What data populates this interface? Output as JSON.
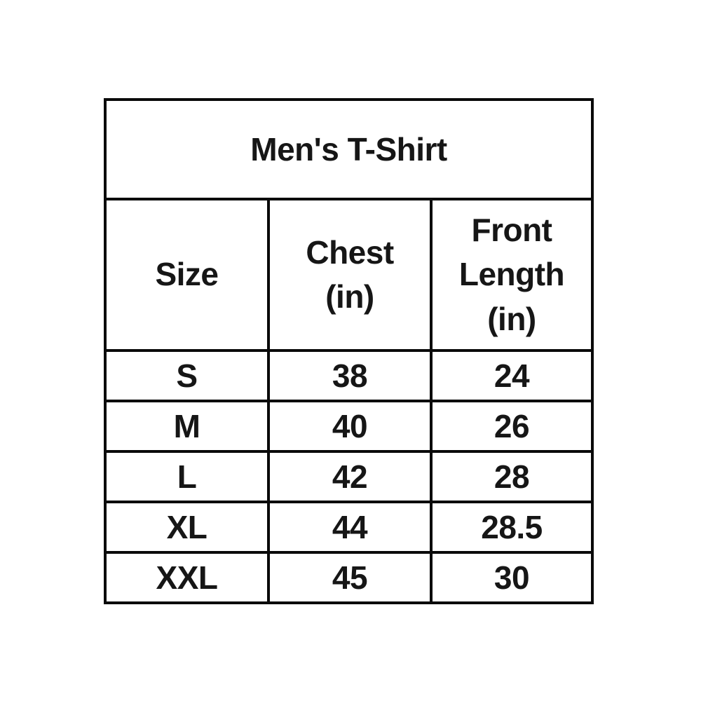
{
  "page": {
    "background": "#ffffff"
  },
  "size_chart": {
    "title": "Men's T-Shirt",
    "headers": [
      "Size",
      "Chest\n(in)",
      "Front\nLength\n(in)"
    ],
    "rows": [
      [
        "S",
        "38",
        "24"
      ],
      [
        "M",
        "40",
        "26"
      ],
      [
        "L",
        "42",
        "28"
      ],
      [
        "XL",
        "44",
        "28.5"
      ],
      [
        "XXL",
        "45",
        "30"
      ]
    ],
    "colors": {
      "border": "#0a0a0a",
      "text": "#161616",
      "background": "#ffffff"
    }
  },
  "chart_data": {
    "type": "table",
    "title": "Men's T-Shirt",
    "columns": [
      "Size",
      "Chest (in)",
      "Front Length (in)"
    ],
    "records": [
      {
        "size": "S",
        "chest_in": 38,
        "front_length_in": 24
      },
      {
        "size": "M",
        "chest_in": 40,
        "front_length_in": 26
      },
      {
        "size": "L",
        "chest_in": 42,
        "front_length_in": 28
      },
      {
        "size": "XL",
        "chest_in": 44,
        "front_length_in": 28.5
      },
      {
        "size": "XXL",
        "chest_in": 45,
        "front_length_in": 30
      }
    ]
  }
}
